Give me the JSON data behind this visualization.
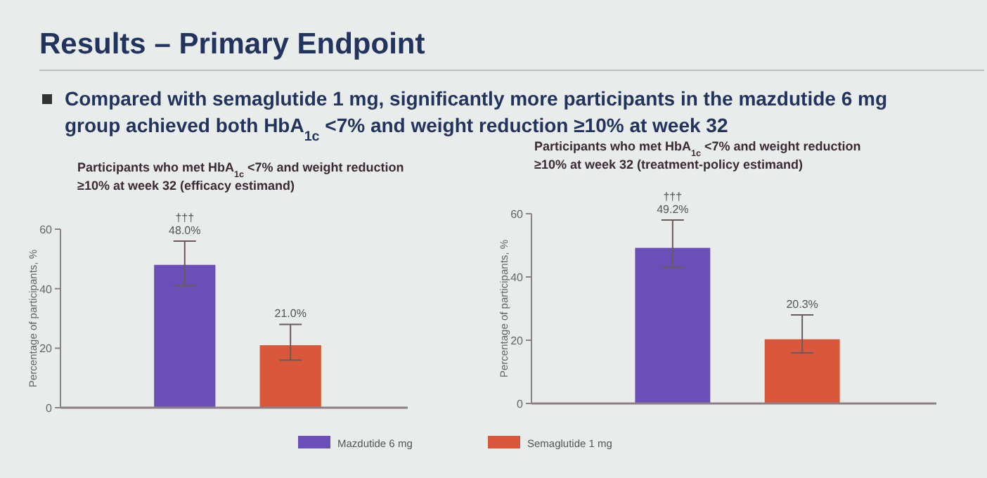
{
  "chart_data": [
    {
      "type": "other",
      "title": "Results – Primary Endpoint",
      "subtitle": "Compared with semaglutide 1 mg, significantly more participants in the mazdutide 6 mg group achieved both HbA$_{1c}$ <7% and weight reduction ≥10% at week 32"
    },
    {
      "type": "bar",
      "title": "Participants who met HbA$_{1c}$ <7% and weight reduction ≥10% at week 32  (efficacy estimand)",
      "ylabel": "Percentage of participants, %",
      "categories": [
        null,
        null
      ],
      "ylim": [
        0,
        60
      ],
      "yticks": [
        0,
        20,
        40,
        60
      ],
      "legend": "bottom",
      "annotations": [
        "†††"
      ],
      "series": [
        {
          "name": "Mazdutide 6 mg",
          "color": "#6a4fb8",
          "values": [
            48.0,
            null
          ],
          "errors": [
            [
              41,
              56
            ],
            null
          ],
          "value_labels": [
            "48.0%",
            null
          ]
        },
        {
          "name": "Semaglutide 1 mg",
          "color": "#d9573a",
          "values": [
            null,
            21.0
          ],
          "errors": [
            null,
            [
              16,
              28
            ]
          ],
          "value_labels": [
            null,
            "21.0%"
          ]
        }
      ]
    },
    {
      "type": "bar",
      "title": "Participants who met HbA$_{1c}$ <7% and weight reduction ≥10% at week 32  (treatment-policy estimand)",
      "ylabel": "Percentage of participants, %",
      "categories": [
        null,
        null
      ],
      "ylim": [
        0,
        60
      ],
      "yticks": [
        0,
        20,
        40,
        60
      ],
      "annotations": [
        "†††"
      ],
      "series": [
        {
          "color": "#6a4fb8",
          "values": [
            49.2,
            null
          ],
          "errors": [
            [
              43,
              58
            ],
            null
          ],
          "value_labels": [
            "49.2%",
            null
          ]
        },
        {
          "color": "#d9573a",
          "values": [
            null,
            20.3
          ],
          "errors": [
            null,
            [
              16,
              28
            ]
          ],
          "value_labels": [
            null,
            "20.3%"
          ]
        }
      ]
    }
  ]
}
